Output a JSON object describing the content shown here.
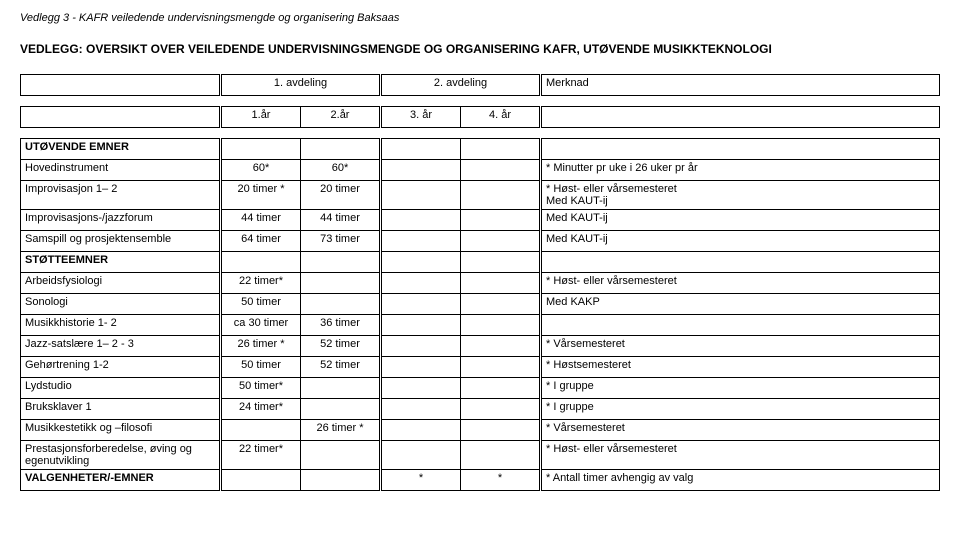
{
  "header": "Vedlegg 3 - KAFR veiledende undervisningsmengde og organisering Baksaas",
  "title": "VEDLEGG: OVERSIKT OVER VEILEDENDE UNDERVISNINGSMENGDE OG ORGANISERING KAFR, UTØVENDE MUSIKKTEKNOLOGI",
  "cols": {
    "avd1": "1. avdeling",
    "avd2": "2. avdeling",
    "merknad": "Merknad",
    "y1": "1.år",
    "y2": "2.år",
    "y3": "3. år",
    "y4": "4. år"
  },
  "sections": {
    "utovende": "UTØVENDE EMNER",
    "stotte": "STØTTEEMNER"
  },
  "rows": [
    {
      "label": "Hovedinstrument",
      "c1": "60*",
      "c2": "60*",
      "c3": "",
      "c4": "",
      "m": "* Minutter pr uke i 26 uker pr år"
    },
    {
      "label": "Improvisasjon 1– 2",
      "c1": "20 timer *",
      "c2": "20 timer",
      "c3": "",
      "c4": "",
      "m": "* Høst- eller vårsemesteret\nMed KAUT-ij"
    },
    {
      "label": "Improvisasjons-/jazzforum",
      "c1": "44 timer",
      "c2": "44 timer",
      "c3": "",
      "c4": "",
      "m": "Med KAUT-ij"
    },
    {
      "label": "Samspill og prosjektensemble",
      "c1": "64 timer",
      "c2": "73 timer",
      "c3": "",
      "c4": "",
      "m": "Med KAUT-ij"
    }
  ],
  "rows2": [
    {
      "label": "Arbeidsfysiologi",
      "c1": "22 timer*",
      "c2": "",
      "c3": "",
      "c4": "",
      "m": "* Høst- eller vårsemesteret"
    },
    {
      "label": "Sonologi",
      "c1": "50 timer",
      "c2": "",
      "c3": "",
      "c4": "",
      "m": "Med KAKP"
    },
    {
      "label": "Musikkhistorie 1- 2",
      "c1": "ca 30 timer",
      "c2": "36 timer",
      "c3": "",
      "c4": "",
      "m": ""
    },
    {
      "label": "Jazz-satslære 1– 2 - 3",
      "c1": "26 timer *",
      "c2": "52 timer",
      "c3": "",
      "c4": "",
      "m": "* Vårsemesteret"
    },
    {
      "label": "Gehørtrening 1-2",
      "c1": "50 timer",
      "c2": "52 timer",
      "c3": "",
      "c4": "",
      "m": "* Høstsemesteret"
    },
    {
      "label": "Lydstudio",
      "c1": "50 timer*",
      "c2": "",
      "c3": "",
      "c4": "",
      "m": "* I gruppe"
    },
    {
      "label": "Bruksklaver 1",
      "c1": "24 timer*",
      "c2": "",
      "c3": "",
      "c4": "",
      "m": "* I gruppe"
    },
    {
      "label": "Musikkestetikk og –filosofi",
      "c1": "",
      "c2": "26 timer *",
      "c3": "",
      "c4": "",
      "m": "* Vårsemesteret"
    },
    {
      "label": "Prestasjonsforberedelse, øving og egenutvikling",
      "c1": "22 timer*",
      "c2": "",
      "c3": "",
      "c4": "",
      "m": "* Høst- eller vårsemesteret"
    },
    {
      "label": "VALGENHETER/-EMNER",
      "c1": "",
      "c2": "",
      "c3": "*",
      "c4": "*",
      "m": "* Antall timer avhengig av valg",
      "bold": true
    }
  ]
}
